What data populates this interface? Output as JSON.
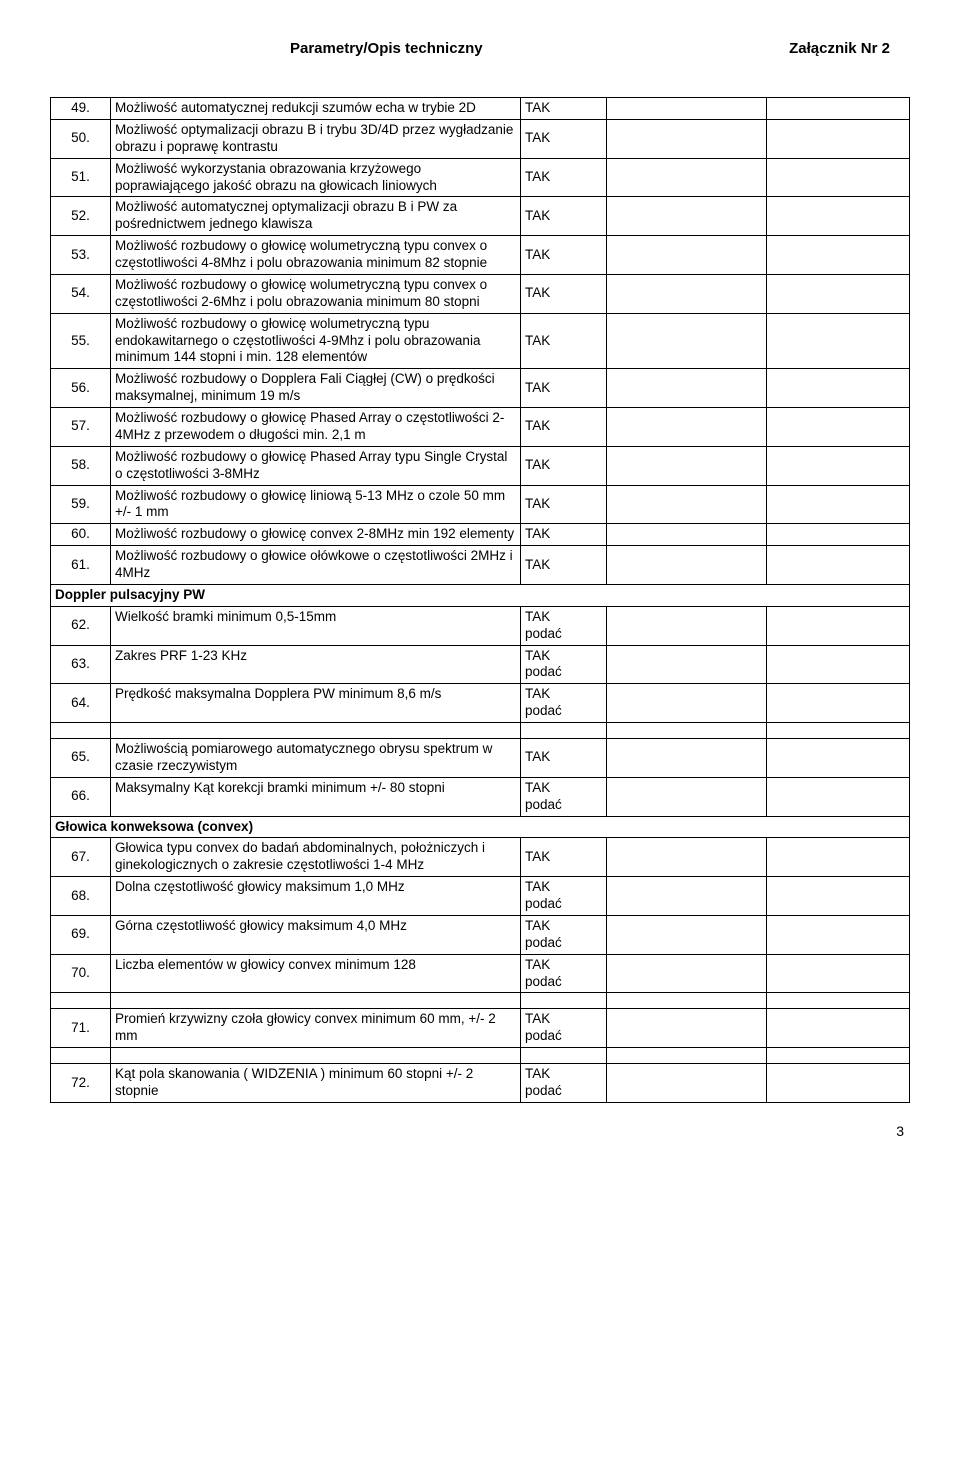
{
  "header": {
    "left": "Parametry/Opis techniczny",
    "right": "Załącznik Nr 2"
  },
  "rows": [
    {
      "n": "49.",
      "desc": "Możliwość automatycznej redukcji szumów echa w trybie 2D",
      "req": "TAK"
    },
    {
      "n": "50.",
      "desc": "Możliwość optymalizacji obrazu B i trybu 3D/4D przez wygładzanie obrazu i poprawę kontrastu",
      "req": "TAK"
    },
    {
      "n": "51.",
      "desc": "Możliwość wykorzystania obrazowania krzyżowego poprawiającego jakość obrazu na głowicach liniowych",
      "req": "TAK"
    },
    {
      "n": "52.",
      "desc": "Możliwość automatycznej optymalizacji obrazu B i PW za pośrednictwem jednego klawisza",
      "req": "TAK"
    },
    {
      "n": "53.",
      "desc": "Możliwość rozbudowy o głowicę wolumetryczną typu convex o częstotliwości 4-8Mhz i polu obrazowania minimum 82 stopnie",
      "req": "TAK"
    },
    {
      "n": "54.",
      "desc": "Możliwość rozbudowy o głowicę wolumetryczną typu convex o częstotliwości 2-6Mhz i polu obrazowania minimum 80 stopni",
      "req": "TAK"
    },
    {
      "n": "55.",
      "desc": "Możliwość rozbudowy o głowicę wolumetryczną typu endokawitarnego  o częstotliwości 4-9Mhz i polu obrazowania minimum 144 stopni i min. 128 elementów",
      "req": "TAK"
    },
    {
      "n": "56.",
      "desc": "Możliwość rozbudowy o Dopplera Fali Ciągłej (CW) o prędkości maksymalnej, minimum 19 m/s",
      "req": "TAK"
    },
    {
      "n": "57.",
      "desc": "Możliwość rozbudowy o głowicę Phased Array o częstotliwości 2-4MHz z przewodem o długości min. 2,1 m",
      "req": "TAK"
    },
    {
      "n": "58.",
      "desc": "Możliwość rozbudowy o głowicę Phased Array typu Single Crystal o częstotliwości 3-8MHz",
      "req": "TAK"
    },
    {
      "n": "59.",
      "desc": "Możliwość rozbudowy o głowicę liniową 5-13 MHz o czole 50 mm\n+/- 1 mm",
      "req": "TAK"
    },
    {
      "n": "60.",
      "desc": "Możliwość rozbudowy o głowicę convex 2-8MHz min 192 elementy",
      "req": "TAK"
    },
    {
      "n": "61.",
      "desc": "Możliwość rozbudowy o głowice ołówkowe o częstotliwości 2MHz i 4MHz",
      "req": "TAK"
    },
    {
      "section": "Doppler pulsacyjny PW"
    },
    {
      "n": "62.",
      "desc": "Wielkość bramki minimum 0,5-15mm",
      "req": "TAK\npodać"
    },
    {
      "n": "63.",
      "desc": "Zakres PRF 1-23 KHz",
      "req": "TAK\npodać"
    },
    {
      "n": "64.",
      "desc": "Prędkość maksymalna Dopplera PW minimum 8,6 m/s",
      "req": "TAK\npodać"
    },
    {
      "spacer": true
    },
    {
      "n": "65.",
      "desc": "Możliwością pomiarowego automatycznego obrysu spektrum w czasie rzeczywistym",
      "req": "TAK"
    },
    {
      "n": "66.",
      "desc": "Maksymalny Kąt korekcji bramki minimum +/- 80 stopni",
      "req": "TAK\npodać"
    },
    {
      "section": "Głowica konweksowa (convex)"
    },
    {
      "n": "67.",
      "desc": "Głowica typu convex do badań abdominalnych, położniczych i ginekologicznych o zakresie częstotliwości 1-4 MHz",
      "req": "TAK"
    },
    {
      "n": "68.",
      "desc": "Dolna częstotliwość głowicy maksimum 1,0 MHz",
      "req": "TAK\npodać"
    },
    {
      "n": "69.",
      "desc": "Górna  częstotliwość głowicy maksimum 4,0 MHz",
      "req": "TAK\npodać"
    },
    {
      "n": "70.",
      "desc": "Liczba elementów w głowicy convex minimum 128",
      "req": "TAK\npodać"
    },
    {
      "spacer": true
    },
    {
      "n": "71.",
      "desc": "Promień krzywizny czoła głowicy convex minimum 60 mm, +/- 2 mm",
      "req": "TAK\npodać"
    },
    {
      "spacer": true
    },
    {
      "n": "72.",
      "desc": "Kąt pola skanowania ( WIDZENIA ) minimum 60 stopni +/- 2 stopnie",
      "req": "TAK\npodać"
    }
  ],
  "pagenum": "3"
}
